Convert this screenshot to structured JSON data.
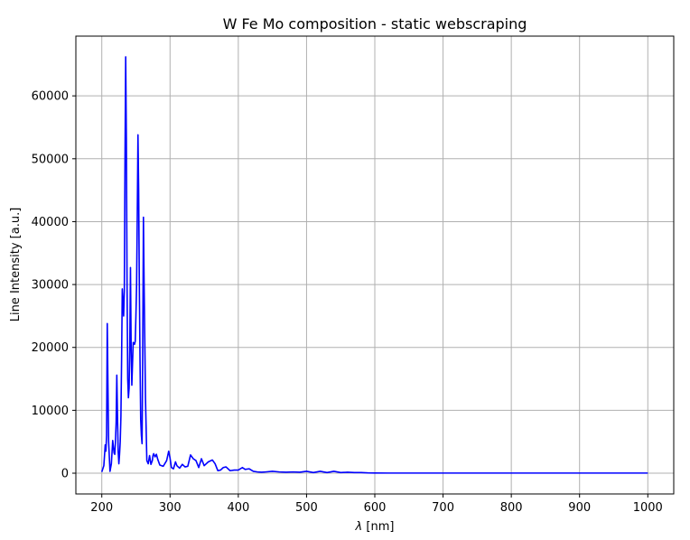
{
  "chart_data": {
    "type": "line",
    "title": "W Fe Mo composition - static webscraping",
    "xlabel_italic": "λ",
    "xlabel_rest": " [nm]",
    "ylabel": "Line Intensity [a.u.]",
    "xlim": [
      162,
      1038
    ],
    "ylim": [
      -3300,
      69500
    ],
    "grid": true,
    "line_color": "#0000ff",
    "xticks": [
      200,
      300,
      400,
      500,
      600,
      700,
      800,
      900,
      1000
    ],
    "xtick_labels": [
      "200",
      "300",
      "400",
      "500",
      "600",
      "700",
      "800",
      "900",
      "1000"
    ],
    "yticks": [
      0,
      10000,
      20000,
      30000,
      40000,
      50000,
      60000
    ],
    "ytick_labels": [
      "0",
      "10000",
      "20000",
      "30000",
      "40000",
      "50000",
      "60000"
    ],
    "series": [
      {
        "x": [
          200,
          203,
          205,
          206,
          207,
          208,
          209,
          210,
          212,
          214,
          216,
          218,
          219,
          220,
          221,
          222,
          223,
          224,
          225,
          226,
          227,
          228,
          229,
          230,
          232,
          233,
          234,
          235,
          236,
          237,
          238,
          239,
          240,
          241,
          242,
          243,
          244,
          246,
          248,
          249,
          250,
          251,
          252,
          253,
          254,
          255,
          256,
          257,
          258,
          259,
          260,
          261,
          262,
          264,
          266,
          268,
          270,
          272,
          274,
          275,
          276,
          278,
          280,
          282,
          285,
          290,
          295,
          298,
          300,
          302,
          305,
          308,
          310,
          314,
          318,
          322,
          326,
          330,
          334,
          338,
          342,
          346,
          350,
          356,
          362,
          366,
          370,
          374,
          378,
          382,
          388,
          394,
          400,
          406,
          410,
          416,
          422,
          428,
          434,
          440,
          450,
          460,
          470,
          480,
          490,
          500,
          510,
          520,
          530,
          540,
          550,
          560,
          570,
          580,
          590,
          600,
          620,
          640,
          660,
          700,
          750,
          800,
          850,
          900,
          950,
          1000
        ],
        "y": [
          200,
          1200,
          4500,
          3500,
          6000,
          23800,
          14000,
          5000,
          300,
          1500,
          5200,
          3200,
          3000,
          5000,
          8000,
          15600,
          9000,
          3500,
          1500,
          3000,
          5000,
          9000,
          18000,
          29300,
          25000,
          29000,
          50000,
          66200,
          53000,
          30000,
          15000,
          12000,
          13500,
          20000,
          32700,
          20000,
          14000,
          20800,
          20500,
          21000,
          25000,
          30000,
          41000,
          53800,
          45000,
          30000,
          18000,
          8500,
          6000,
          4700,
          20000,
          40700,
          30000,
          12000,
          2000,
          1500,
          2800,
          1400,
          2000,
          2800,
          3100,
          2600,
          3000,
          2200,
          1300,
          1100,
          2000,
          3500,
          2400,
          900,
          700,
          1800,
          1200,
          800,
          1400,
          1000,
          1100,
          2900,
          2300,
          2000,
          900,
          2300,
          1200,
          1800,
          2100,
          1500,
          400,
          500,
          900,
          1000,
          400,
          500,
          500,
          900,
          600,
          700,
          300,
          200,
          150,
          200,
          300,
          200,
          150,
          200,
          150,
          300,
          100,
          300,
          100,
          300,
          100,
          150,
          100,
          100,
          50,
          30,
          20,
          20,
          20,
          20,
          20,
          20,
          20,
          20,
          20,
          20
        ]
      }
    ]
  }
}
